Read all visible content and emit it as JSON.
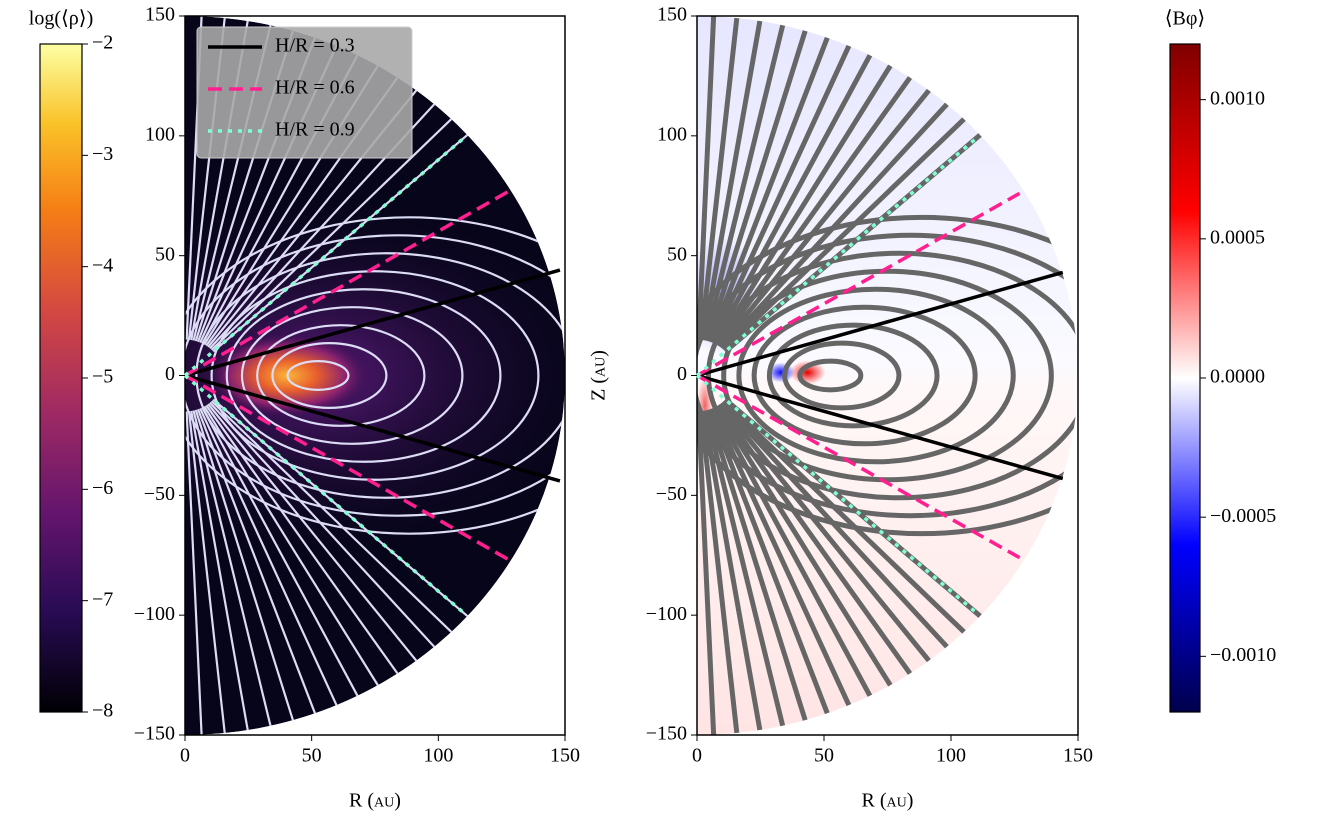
{
  "chart_data": [
    {
      "type": "line",
      "xlabel": "R (au)",
      "xlim": [
        0,
        150
      ],
      "ylim": [
        -150,
        150
      ],
      "xticks": [
        0,
        50,
        100,
        150
      ],
      "yticks": [
        {
          "value": -150,
          "label": "−150"
        },
        {
          "value": -100,
          "label": "−100"
        },
        {
          "value": -50,
          "label": "−50"
        },
        0,
        50,
        100,
        150
      ],
      "colormap": "inferno",
      "stream_color": "#dcdcf5",
      "legend": "upper left",
      "colorbar": {
        "label": "log(⟨ρ⟩)",
        "lim": [
          -8,
          -2
        ],
        "ticks": [
          {
            "value": -8,
            "label": "−8"
          },
          {
            "value": -7,
            "label": "−7"
          },
          {
            "value": -6,
            "label": "−6"
          },
          {
            "value": -5,
            "label": "−5"
          },
          {
            "value": -4,
            "label": "−4"
          },
          {
            "value": -3,
            "label": "−3"
          },
          {
            "value": -2,
            "label": "−2"
          }
        ]
      },
      "series": [
        {
          "name": "H/R = 0.3",
          "color": "#000000",
          "dash": "solid",
          "x": [
            0,
            148,
            null,
            0,
            148
          ],
          "values": [
            0,
            44,
            null,
            0,
            -44
          ]
        },
        {
          "name": "H/R = 0.6",
          "color": "#ff1f8f",
          "dash": "dashed",
          "x": [
            0,
            128,
            null,
            0,
            128
          ],
          "values": [
            0,
            77,
            null,
            0,
            -77
          ]
        },
        {
          "name": "H/R = 0.9",
          "color": "#7fffd4",
          "dash": "dotted",
          "x": [
            0,
            110,
            null,
            0,
            110
          ],
          "values": [
            0,
            99,
            null,
            0,
            -99
          ]
        }
      ]
    },
    {
      "type": "line",
      "xlabel": "R (au)",
      "ylabel": "Z (au)",
      "xlim": [
        0,
        150
      ],
      "ylim": [
        -150,
        150
      ],
      "xticks": [
        0,
        50,
        100,
        150
      ],
      "yticks": [
        {
          "value": -150,
          "label": "−150"
        },
        {
          "value": -100,
          "label": "−100"
        },
        {
          "value": -50,
          "label": "−50"
        },
        0,
        50,
        100,
        150
      ],
      "colormap": "seismic",
      "stream_color": "#666666",
      "colorbar": {
        "label": "⟨Bφ⟩",
        "lim": [
          -0.0012,
          0.0012
        ],
        "ticks": [
          {
            "value": -0.001,
            "label": "−0.0010"
          },
          {
            "value": -0.0005,
            "label": "−0.0005"
          },
          {
            "value": 0,
            "label": "0.0000"
          },
          {
            "value": 0.0005,
            "label": "0.0005"
          },
          {
            "value": 0.001,
            "label": "0.0010"
          }
        ]
      },
      "series": [
        {
          "color": "#000000",
          "dash": "solid",
          "x": [
            0,
            144,
            null,
            0,
            144
          ],
          "values": [
            0,
            43,
            null,
            0,
            -43
          ]
        },
        {
          "color": "#ff1f8f",
          "dash": "dashed",
          "x": [
            0,
            127,
            null,
            0,
            127
          ],
          "values": [
            0,
            76,
            null,
            0,
            -76
          ]
        },
        {
          "color": "#7fffd4",
          "dash": "dotted",
          "x": [
            0,
            110,
            null,
            0,
            110
          ],
          "values": [
            0,
            99,
            null,
            0,
            -99
          ]
        }
      ]
    }
  ]
}
